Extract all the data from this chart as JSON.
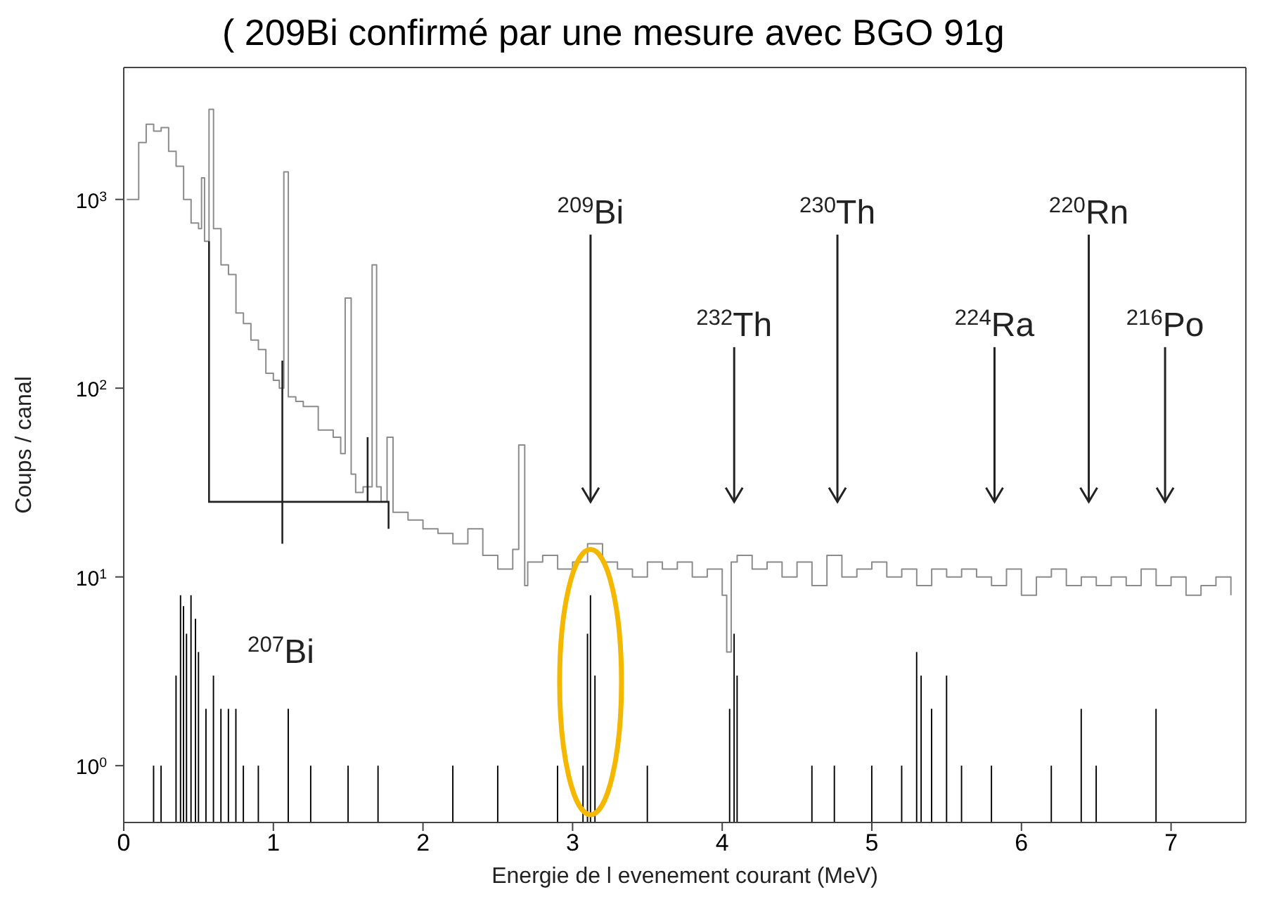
{
  "chart_data": {
    "type": "step",
    "title": "( 209Bi confirmé par une mesure avec BGO 91g",
    "xlabel": "Energie de l evenement courant (MeV)",
    "ylabel": "Coups / canal",
    "log": "y",
    "xlim": [
      0,
      7.5
    ],
    "xticks": [
      0,
      1,
      2,
      3,
      4,
      5,
      6,
      7
    ],
    "ylim": [
      0.5,
      5000
    ],
    "yticks": [
      {
        "value": 1,
        "label": "10$^{0}$"
      },
      {
        "value": 10,
        "label": "10$^{1}$"
      },
      {
        "value": 100,
        "label": "10$^{2}$"
      },
      {
        "value": 1000,
        "label": "10$^{3}$"
      }
    ],
    "series": [
      {
        "color": "#8c8c8c",
        "x": [
          0.02,
          0.05,
          0.1,
          0.15,
          0.2,
          0.25,
          0.3,
          0.35,
          0.4,
          0.45,
          0.5,
          0.52,
          0.54,
          0.57,
          0.6,
          0.65,
          0.7,
          0.75,
          0.8,
          0.85,
          0.9,
          0.95,
          1.0,
          1.04,
          1.07,
          1.1,
          1.15,
          1.2,
          1.3,
          1.4,
          1.45,
          1.48,
          1.52,
          1.55,
          1.6,
          1.63,
          1.66,
          1.69,
          1.72,
          1.76,
          1.8,
          1.9,
          2.0,
          2.1,
          2.2,
          2.3,
          2.4,
          2.5,
          2.6,
          2.64,
          2.68,
          2.7,
          2.8,
          2.9,
          3.0,
          3.1,
          3.2,
          3.3,
          3.4,
          3.5,
          3.6,
          3.7,
          3.8,
          3.9,
          4.0,
          4.03,
          4.06,
          4.1,
          4.2,
          4.3,
          4.4,
          4.5,
          4.6,
          4.7,
          4.8,
          4.9,
          5.0,
          5.1,
          5.2,
          5.3,
          5.4,
          5.5,
          5.6,
          5.7,
          5.8,
          5.9,
          6.0,
          6.1,
          6.2,
          6.3,
          6.4,
          6.5,
          6.6,
          6.7,
          6.8,
          6.9,
          7.0,
          7.1,
          7.2,
          7.3,
          7.4
        ],
        "values": [
          1000,
          1000,
          2000,
          2500,
          2300,
          2400,
          1800,
          1500,
          1000,
          750,
          700,
          1300,
          600,
          3000,
          700,
          450,
          400,
          250,
          220,
          180,
          160,
          120,
          110,
          100,
          1400,
          90,
          85,
          80,
          60,
          55,
          45,
          300,
          35,
          28,
          30,
          30,
          450,
          30,
          25,
          55,
          22,
          20,
          18,
          17,
          15,
          18,
          13,
          11,
          14,
          50,
          9,
          12,
          13,
          11,
          12,
          15,
          12,
          11,
          10,
          12,
          11,
          12,
          10,
          11,
          8,
          4,
          12,
          13,
          11,
          12,
          10,
          12,
          9,
          13,
          10,
          11,
          12,
          10,
          11,
          9,
          11,
          10,
          11,
          10,
          9,
          11,
          8,
          10,
          11,
          9,
          10,
          9,
          10,
          9,
          11,
          9,
          10,
          8,
          9,
          10,
          8
        ]
      },
      {
        "type": "bar",
        "color": "#000000",
        "x": [
          0.2,
          0.25,
          0.35,
          0.38,
          0.4,
          0.42,
          0.45,
          0.48,
          0.5,
          0.55,
          0.6,
          0.65,
          0.7,
          0.75,
          0.8,
          0.9,
          1.1,
          1.25,
          1.5,
          1.7,
          2.2,
          2.5,
          2.9,
          3.07,
          3.1,
          3.12,
          3.15,
          3.5,
          4.05,
          4.08,
          4.1,
          4.6,
          4.75,
          5.0,
          5.2,
          5.3,
          5.33,
          5.4,
          5.5,
          5.6,
          5.8,
          6.2,
          6.4,
          6.5,
          6.9
        ],
        "values": [
          1,
          1,
          3,
          8,
          7,
          5,
          8,
          6,
          4,
          2,
          3,
          2,
          2,
          2,
          1,
          1,
          2,
          1,
          1,
          1,
          1,
          1,
          1,
          1,
          5,
          8,
          3,
          1,
          2,
          5,
          3,
          1,
          1,
          1,
          1,
          4,
          3,
          2,
          3,
          1,
          1,
          1,
          2,
          1,
          2
        ]
      }
    ],
    "annotations": [
      "$^{209}$Bi",
      "$^{232}$Th",
      "$^{230}$Th",
      "$^{224}$Ra",
      "$^{220}$Rn",
      "$^{216}$Po",
      "$^{207}$Bi"
    ]
  }
}
